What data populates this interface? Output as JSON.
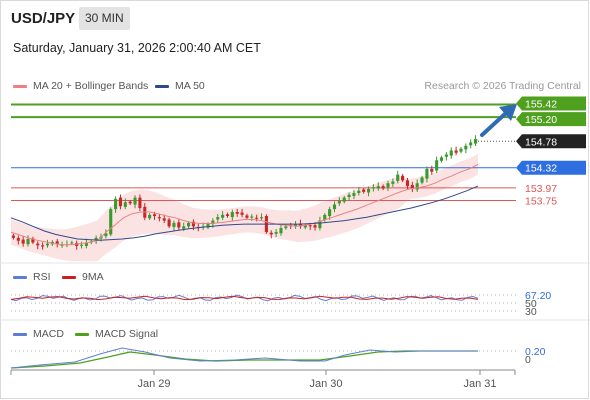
{
  "header": {
    "symbol": "USD/JPY",
    "timeframe": "30 MIN",
    "datetime": "Saturday, January 31, 2026 2:00:40 AM CET"
  },
  "credit": "Research © 2026 Trading Central",
  "colors": {
    "ma20": "#f08080",
    "ma50": "#2e4a8c",
    "bollinger_fill": "#fbd9d9",
    "target_green": "#4fa01f",
    "current_price": "#222222",
    "pivot_blue": "#2f6ee0",
    "support_red": "#e05555",
    "rsi": "#5b7fd6",
    "rsi_ma": "#cc1f1f",
    "macd": "#5b7fd6",
    "macd_signal": "#4fa01f",
    "arrow": "#2f6bb5",
    "candle_up": "#3a9a2e",
    "candle_down": "#c62828"
  },
  "legends": {
    "main": [
      {
        "label": "MA 20 + Bollinger Bands",
        "color": "#f08080"
      },
      {
        "label": "MA 50",
        "color": "#2e4a8c"
      }
    ],
    "rsi": [
      {
        "label": "RSI",
        "color": "#5b7fd6"
      },
      {
        "label": "9MA",
        "color": "#cc1f1f"
      }
    ],
    "macd": [
      {
        "label": "MACD",
        "color": "#5b7fd6"
      },
      {
        "label": "MACD Signal",
        "color": "#4fa01f"
      }
    ]
  },
  "chart_data": [
    {
      "type": "candlestick",
      "panel": "price",
      "x_ticks": [
        "Jan 29",
        "Jan 30",
        "Jan 31"
      ],
      "ylim": [
        152.75,
        155.55
      ],
      "levels": [
        {
          "value": "155.42",
          "kind": "target",
          "color": "#4fa01f"
        },
        {
          "value": "155.20",
          "kind": "target",
          "color": "#4fa01f"
        },
        {
          "value": "154.78",
          "kind": "current",
          "color": "#222222"
        },
        {
          "value": "154.32",
          "kind": "pivot",
          "color": "#2f6ee0"
        },
        {
          "value": "153.97",
          "kind": "support",
          "color": "#e05555"
        },
        {
          "value": "153.75",
          "kind": "support",
          "color": "#e05555"
        }
      ],
      "close_path": [
        153.1,
        153.05,
        153.0,
        153.08,
        153.02,
        152.97,
        152.95,
        153.0,
        153.03,
        153.0,
        152.98,
        152.99,
        153.02,
        152.96,
        152.98,
        153.02,
        153.04,
        153.1,
        153.12,
        153.18,
        153.6,
        153.78,
        153.65,
        153.72,
        153.7,
        153.8,
        153.62,
        153.45,
        153.5,
        153.48,
        153.44,
        153.4,
        153.3,
        153.36,
        153.28,
        153.3,
        153.36,
        153.3,
        153.27,
        153.3,
        153.34,
        153.4,
        153.46,
        153.5,
        153.48,
        153.55,
        153.52,
        153.5,
        153.45,
        153.47,
        153.44,
        153.46,
        153.2,
        153.16,
        153.2,
        153.27,
        153.3,
        153.32,
        153.34,
        153.3,
        153.32,
        153.3,
        153.28,
        153.4,
        153.5,
        153.6,
        153.68,
        153.74,
        153.8,
        153.85,
        153.88,
        153.92,
        153.9,
        153.95,
        153.98,
        154.0,
        153.96,
        154.05,
        154.08,
        154.2,
        154.1,
        154.0,
        153.95,
        154.05,
        154.15,
        154.3,
        154.25,
        154.45,
        154.5,
        154.55,
        154.62,
        154.58,
        154.65,
        154.7,
        154.76,
        154.82
      ],
      "ma20_path": [
        153.2,
        153.15,
        153.1,
        153.06,
        153.03,
        153.0,
        152.98,
        152.98,
        153.0,
        153.02,
        153.05,
        153.2,
        153.32,
        153.45,
        153.52,
        153.55,
        153.55,
        153.52,
        153.48,
        153.45,
        153.4,
        153.36,
        153.35,
        153.35,
        153.36,
        153.38,
        153.4,
        153.42,
        153.42,
        153.4,
        153.36,
        153.33,
        153.32,
        153.3,
        153.32,
        153.35,
        153.4,
        153.45,
        153.5,
        153.55,
        153.6,
        153.66,
        153.72,
        153.78,
        153.84,
        153.9,
        153.95,
        153.97,
        154.0,
        154.05,
        154.12,
        154.18,
        154.25,
        154.3,
        154.38
      ],
      "ma50_path": [
        153.45,
        153.38,
        153.3,
        153.22,
        153.16,
        153.12,
        153.08,
        153.07,
        153.06,
        153.07,
        153.08,
        153.1,
        153.13,
        153.17,
        153.2,
        153.23,
        153.26,
        153.28,
        153.3,
        153.32,
        153.33,
        153.34,
        153.34,
        153.34,
        153.34,
        153.34,
        153.34,
        153.35,
        153.36,
        153.38,
        153.4,
        153.43,
        153.46,
        153.5,
        153.54,
        153.58,
        153.62,
        153.67,
        153.72,
        153.78,
        153.85,
        153.92,
        154.0
      ]
    },
    {
      "type": "line",
      "panel": "RSI",
      "series": [
        {
          "name": "RSI"
        },
        {
          "name": "9MA"
        }
      ],
      "y_ticks": [
        "67.20",
        "50",
        "30"
      ]
    },
    {
      "type": "line",
      "panel": "MACD",
      "series": [
        {
          "name": "MACD"
        },
        {
          "name": "MACD Signal"
        }
      ],
      "y_ticks": [
        "0.20",
        "0"
      ]
    }
  ]
}
